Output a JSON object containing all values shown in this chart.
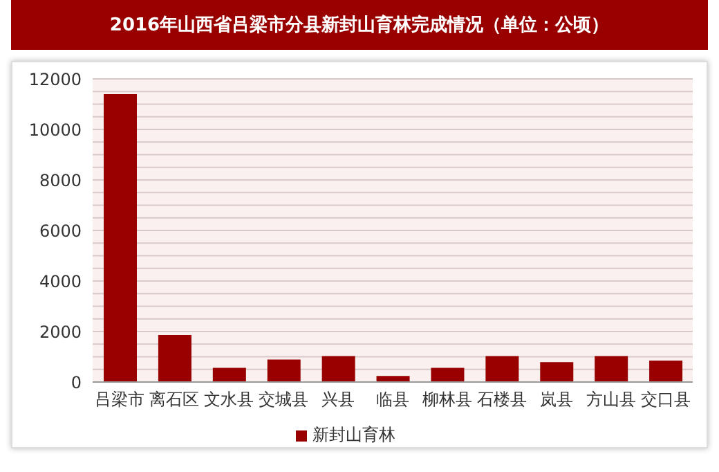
{
  "chart_data": {
    "type": "bar",
    "title": "2016年山西省吕梁市分县新封山育林完成情况（单位：公顷）",
    "categories": [
      "吕梁市",
      "离石区",
      "文水县",
      "交城县",
      "兴县",
      "临县",
      "柳林县",
      "石楼县",
      "岚县",
      "方山县",
      "交口县"
    ],
    "series": [
      {
        "name": "新封山育林",
        "color": "#990000",
        "values": [
          11400,
          1860,
          560,
          890,
          1030,
          240,
          560,
          1030,
          790,
          1030,
          850
        ]
      }
    ],
    "ylim": [
      0,
      12000
    ],
    "yticks": [
      0,
      {
        "value": 500,
        "label": null
      },
      {
        "value": 1000,
        "label": null
      },
      {
        "value": 1500,
        "label": null
      },
      2000,
      {
        "value": 2500,
        "label": null
      },
      {
        "value": 3000,
        "label": null
      },
      {
        "value": 3500,
        "label": null
      },
      4000,
      {
        "value": 4500,
        "label": null
      },
      {
        "value": 5000,
        "label": null
      },
      {
        "value": 5500,
        "label": null
      },
      6000,
      {
        "value": 6500,
        "label": null
      },
      {
        "value": 7000,
        "label": null
      },
      {
        "value": 7500,
        "label": null
      },
      8000,
      {
        "value": 8500,
        "label": null
      },
      {
        "value": 9000,
        "label": null
      },
      {
        "value": 9500,
        "label": null
      },
      10000,
      {
        "value": 10500,
        "label": null
      },
      {
        "value": 11000,
        "label": null
      },
      {
        "value": 11500,
        "label": null
      },
      12000
    ],
    "grid": "y",
    "legend": "bottom"
  }
}
